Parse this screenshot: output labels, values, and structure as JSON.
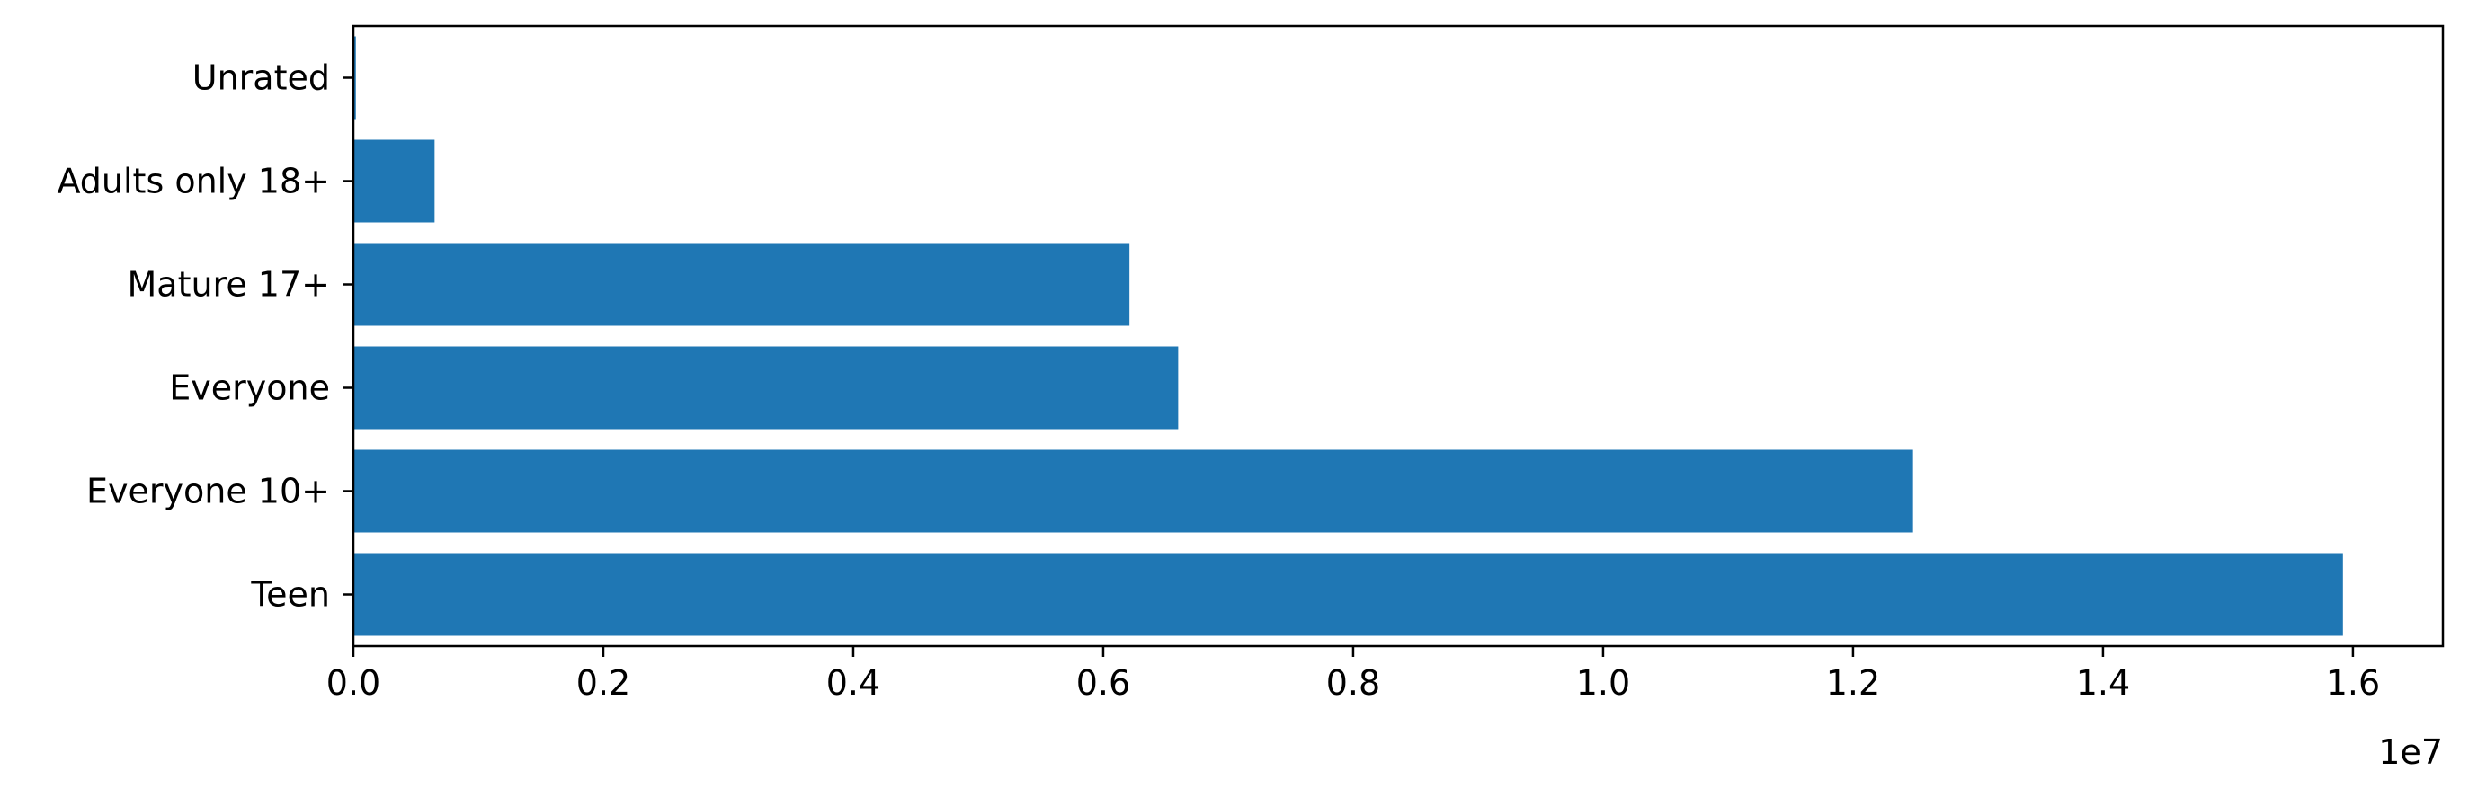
{
  "chart_data": {
    "type": "bar",
    "orientation": "horizontal",
    "categories": [
      "Teen",
      "Everyone 10+",
      "Everyone",
      "Mature 17+",
      "Adults only 18+",
      "Unrated"
    ],
    "values": [
      15920000,
      12480000,
      6600000,
      6210000,
      650000,
      20000
    ],
    "title": "",
    "xlabel": "",
    "ylabel": "",
    "xlim": [
      0,
      16720000
    ],
    "x_ticks": [
      0,
      2000000,
      4000000,
      6000000,
      8000000,
      10000000,
      12000000,
      14000000,
      16000000
    ],
    "x_tick_labels": [
      "0.0",
      "0.2",
      "0.4",
      "0.6",
      "0.8",
      "1.0",
      "1.2",
      "1.4",
      "1.6"
    ],
    "x_offset_label": "1e7",
    "bar_color": "#1f77b4",
    "grid": false,
    "legend": "none"
  }
}
